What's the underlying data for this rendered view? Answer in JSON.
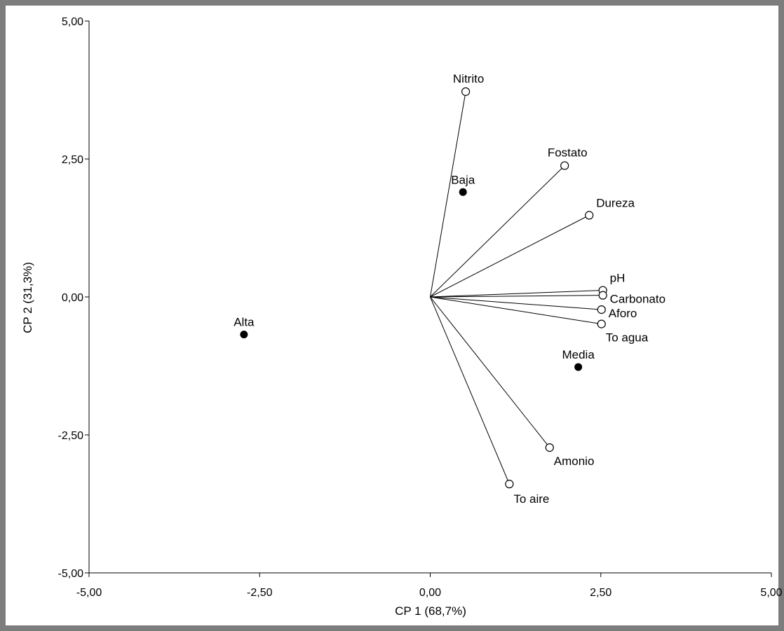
{
  "chart_data": {
    "type": "biplot",
    "xlabel": "CP 1 (68,7%)",
    "ylabel": "CP 2 (31,3%)",
    "xlim": [
      -5,
      5
    ],
    "ylim": [
      -5,
      5
    ],
    "x_ticks": [
      {
        "value": -5,
        "label": "-5,00"
      },
      {
        "value": -2.5,
        "label": "-2,50"
      },
      {
        "value": 0,
        "label": "0,00"
      },
      {
        "value": 2.5,
        "label": "2,50"
      },
      {
        "value": 5,
        "label": "5,00"
      }
    ],
    "y_ticks": [
      {
        "value": 5,
        "label": "5,00"
      },
      {
        "value": 2.5,
        "label": "2,50"
      },
      {
        "value": 0,
        "label": "0,00"
      },
      {
        "value": -2.5,
        "label": "-2,50"
      },
      {
        "value": -5,
        "label": "-5,00"
      }
    ],
    "grid": false,
    "variables": [
      {
        "name": "Nitrito",
        "x": 0.52,
        "y": 3.72,
        "label_pos": "above"
      },
      {
        "name": "Fostato",
        "x": 1.97,
        "y": 2.38,
        "label_pos": "above"
      },
      {
        "name": "Dureza",
        "x": 2.33,
        "y": 1.48,
        "label_pos": "above-right"
      },
      {
        "name": "pH",
        "x": 2.53,
        "y": 0.12,
        "label_pos": "above-right"
      },
      {
        "name": "Carbonato",
        "x": 2.53,
        "y": 0.03,
        "label_pos": "right"
      },
      {
        "name": "Aforo",
        "x": 2.51,
        "y": -0.23,
        "label_pos": "right"
      },
      {
        "name": "To agua",
        "x": 2.51,
        "y": -0.49,
        "label_pos": "below-right"
      },
      {
        "name": "Amonio",
        "x": 1.75,
        "y": -2.73,
        "label_pos": "below-right"
      },
      {
        "name": "To aire",
        "x": 1.16,
        "y": -3.39,
        "label_pos": "below"
      }
    ],
    "observations": [
      {
        "name": "Baja",
        "x": 0.48,
        "y": 1.9
      },
      {
        "name": "Alta",
        "x": -2.73,
        "y": -0.68
      },
      {
        "name": "Media",
        "x": 2.17,
        "y": -1.27
      }
    ]
  }
}
